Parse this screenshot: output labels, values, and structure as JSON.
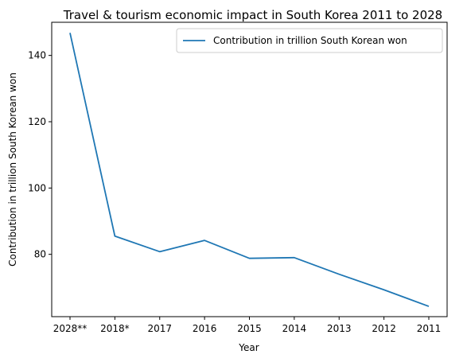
{
  "chart_data": {
    "type": "line",
    "title": "Travel & tourism economic impact in South Korea 2011 to 2028",
    "xlabel": "Year",
    "ylabel": "Contribution in trillion South Korean won",
    "categories": [
      "2028**",
      "2018*",
      "2017",
      "2016",
      "2015",
      "2014",
      "2013",
      "2012",
      "2011"
    ],
    "series": [
      {
        "name": "Contribution in trillion South Korean won",
        "values": [
          146.8,
          85.5,
          80.8,
          84.2,
          78.8,
          79.0,
          74.0,
          69.3,
          64.3
        ],
        "color": "#1f77b4"
      }
    ],
    "ylim": [
      61.2,
      150.0
    ],
    "yticks": [
      80,
      100,
      120,
      140
    ],
    "grid": false,
    "legend_position": "top-right"
  }
}
